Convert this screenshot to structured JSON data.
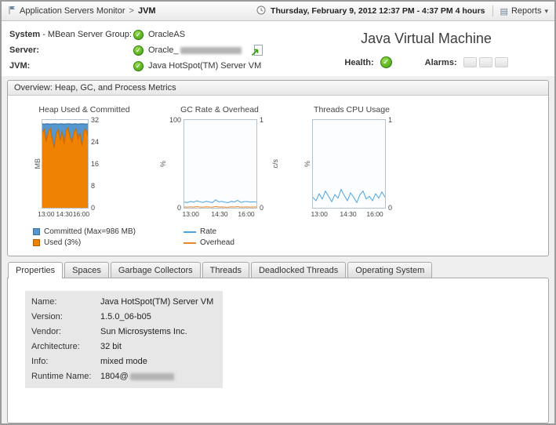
{
  "header": {
    "breadcrumb_parent": "Application Servers Monitor",
    "breadcrumb_sep": ">",
    "breadcrumb_current": "JVM",
    "time_range": "Thursday, February 9, 2012 12:37 PM - 4:37 PM 4 hours",
    "reports_label": "Reports"
  },
  "info": {
    "rows": [
      {
        "label_bold": "System",
        "label_rest": " - MBean Server Group:",
        "value": "OracleAS"
      },
      {
        "label_bold": "Server:",
        "label_rest": "",
        "value": "Oracle_"
      },
      {
        "label_bold": "JVM:",
        "label_rest": "",
        "value": "Java HotSpot(TM) Server VM"
      }
    ],
    "page_title": "Java Virtual Machine",
    "health_label": "Health:",
    "alarms_label": "Alarms:"
  },
  "overview": {
    "title": "Overview: Heap, GC, and Process Metrics"
  },
  "chart_data": [
    {
      "type": "area",
      "title": "Heap Used & Committed",
      "left_label": "MB",
      "right_label": "",
      "ylim": [
        0,
        32
      ],
      "grid": [
        8,
        16,
        24
      ],
      "left_ticks": [],
      "right_ticks": [
        {
          "label": "32",
          "pos": 1
        },
        {
          "label": "24",
          "pos": 0.75
        },
        {
          "label": "16",
          "pos": 0.5
        },
        {
          "label": "8",
          "pos": 0.25
        },
        {
          "label": "0",
          "pos": 0
        }
      ],
      "x_ticks": [
        {
          "label": "13:00",
          "pos": 0.1
        },
        {
          "label": "14:30",
          "pos": 0.5
        },
        {
          "label": "16:00",
          "pos": 0.87
        }
      ],
      "series": [
        {
          "name": "Committed",
          "type": "area",
          "color": "#5596cf",
          "stroke": "#2e6da4",
          "values": [
            30.6,
            30.5,
            30.6,
            30.6,
            30.5,
            30.6,
            30.6,
            30.6,
            30.5,
            30.6,
            30.6,
            30.5,
            30.6,
            30.6,
            30.6,
            30.5,
            30.6,
            30.6,
            30.5,
            30.6,
            30.6,
            30.6,
            30.5,
            30.6
          ]
        },
        {
          "name": "Used",
          "type": "area",
          "color": "#ef8200",
          "stroke": "#c96a00",
          "values": [
            27.5,
            28.6,
            24.2,
            27.8,
            29.0,
            25.0,
            21.8,
            27.2,
            28.5,
            24.6,
            27.9,
            23.2,
            28.2,
            29.1,
            25.8,
            23.9,
            27.6,
            28.8,
            25.2,
            27.1,
            22.6,
            28.0,
            28.7,
            26.3
          ]
        }
      ],
      "legend": [
        {
          "label": "Committed (Max=986 MB)",
          "color": "#5596cf",
          "swatch": "square"
        },
        {
          "label": "Used (3%)",
          "color": "#ef8200",
          "swatch": "square"
        }
      ]
    },
    {
      "type": "line",
      "title": "GC Rate & Overhead",
      "left_label": "%",
      "right_label": "c/s",
      "ylim": [
        0,
        100
      ],
      "grid": [],
      "left_ticks": [
        {
          "label": "100",
          "pos": 1
        },
        {
          "label": "0",
          "pos": 0
        }
      ],
      "right_ticks": [
        {
          "label": "1",
          "pos": 1
        },
        {
          "label": "0",
          "pos": 0
        }
      ],
      "x_ticks": [
        {
          "label": "13:00",
          "pos": 0.1
        },
        {
          "label": "14:30",
          "pos": 0.5
        },
        {
          "label": "16:00",
          "pos": 0.87
        }
      ],
      "series": [
        {
          "name": "Rate",
          "type": "line",
          "color": "#4aa3df",
          "values": [
            6.5,
            6.0,
            7.2,
            6.4,
            8.0,
            6.8,
            6.2,
            7.5,
            6.6,
            6.0,
            9.0,
            6.8,
            7.2,
            6.3,
            5.9,
            7.4,
            6.6,
            8.6,
            6.2,
            6.9,
            7.1,
            6.4,
            6.8,
            6.5
          ]
        },
        {
          "name": "Overhead",
          "type": "line",
          "color": "#e8882a",
          "values": [
            0.9,
            0.8,
            1.1,
            0.8,
            1.3,
            0.9,
            0.8,
            1.1,
            0.9,
            0.8,
            1.4,
            0.9,
            1.0,
            0.8,
            0.7,
            1.1,
            0.9,
            1.3,
            0.8,
            0.9,
            1.0,
            0.8,
            0.9,
            0.9
          ]
        }
      ],
      "legend": [
        {
          "label": "Rate",
          "color": "#4aa3df",
          "swatch": "line"
        },
        {
          "label": "Overhead",
          "color": "#e8882a",
          "swatch": "line"
        }
      ]
    },
    {
      "type": "line",
      "title": "Threads CPU Usage",
      "left_label": "%",
      "right_label": "",
      "ylim": [
        0,
        1
      ],
      "grid": [],
      "left_ticks": [],
      "right_ticks": [
        {
          "label": "1",
          "pos": 1
        },
        {
          "label": "0",
          "pos": 0
        }
      ],
      "x_ticks": [
        {
          "label": "13:00",
          "pos": 0.1
        },
        {
          "label": "14:30",
          "pos": 0.5
        },
        {
          "label": "16:00",
          "pos": 0.87
        }
      ],
      "series": [
        {
          "name": "Threads CPU",
          "type": "line",
          "color": "#4aa3df",
          "values": [
            0.12,
            0.08,
            0.16,
            0.1,
            0.19,
            0.13,
            0.07,
            0.15,
            0.11,
            0.21,
            0.14,
            0.08,
            0.17,
            0.12,
            0.06,
            0.15,
            0.19,
            0.1,
            0.13,
            0.08,
            0.16,
            0.11,
            0.18,
            0.12
          ]
        }
      ],
      "legend": []
    }
  ],
  "tabs": {
    "items": [
      "Properties",
      "Spaces",
      "Garbage Collectors",
      "Threads",
      "Deadlocked Threads",
      "Operating System"
    ],
    "active": "Properties"
  },
  "properties": {
    "rows": [
      {
        "label": "Name:",
        "value": "Java HotSpot(TM) Server VM"
      },
      {
        "label": "Version:",
        "value": "1.5.0_06-b05"
      },
      {
        "label": "Vendor:",
        "value": "Sun Microsystems Inc."
      },
      {
        "label": "Architecture:",
        "value": "32 bit"
      },
      {
        "label": "Info:",
        "value": "mixed mode"
      },
      {
        "label": "Runtime Name:",
        "value": "1804@"
      }
    ]
  }
}
